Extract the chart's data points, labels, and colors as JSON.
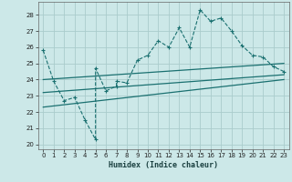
{
  "xlabel": "Humidex (Indice chaleur)",
  "bg_color": "#cce8e8",
  "grid_color": "#aacccc",
  "line_color": "#1a7070",
  "xlim": [
    -0.5,
    23.5
  ],
  "ylim": [
    19.7,
    28.8
  ],
  "yticks": [
    20,
    21,
    22,
    23,
    24,
    25,
    26,
    27,
    28
  ],
  "xticks": [
    0,
    1,
    2,
    3,
    4,
    5,
    6,
    7,
    8,
    9,
    10,
    11,
    12,
    13,
    14,
    15,
    16,
    17,
    18,
    19,
    20,
    21,
    22,
    23
  ],
  "main_series": [
    [
      0,
      25.8
    ],
    [
      1,
      23.9
    ],
    [
      2,
      22.7
    ],
    [
      3,
      22.9
    ],
    [
      4,
      21.5
    ],
    [
      5,
      20.3
    ],
    [
      5,
      24.7
    ],
    [
      6,
      23.3
    ],
    [
      7,
      23.6
    ],
    [
      7,
      23.9
    ],
    [
      8,
      23.8
    ],
    [
      9,
      25.2
    ],
    [
      10,
      25.5
    ],
    [
      11,
      26.4
    ],
    [
      12,
      26.0
    ],
    [
      13,
      27.2
    ],
    [
      14,
      26.0
    ],
    [
      15,
      28.3
    ],
    [
      16,
      27.6
    ],
    [
      17,
      27.8
    ],
    [
      18,
      27.0
    ],
    [
      19,
      26.1
    ],
    [
      20,
      25.5
    ],
    [
      21,
      25.4
    ],
    [
      22,
      24.8
    ],
    [
      23,
      24.5
    ]
  ],
  "upper_line": [
    [
      0,
      24.0
    ],
    [
      23,
      25.0
    ]
  ],
  "middle_line": [
    [
      0,
      23.2
    ],
    [
      23,
      24.3
    ]
  ],
  "lower_line": [
    [
      0,
      22.3
    ],
    [
      23,
      24.0
    ]
  ]
}
